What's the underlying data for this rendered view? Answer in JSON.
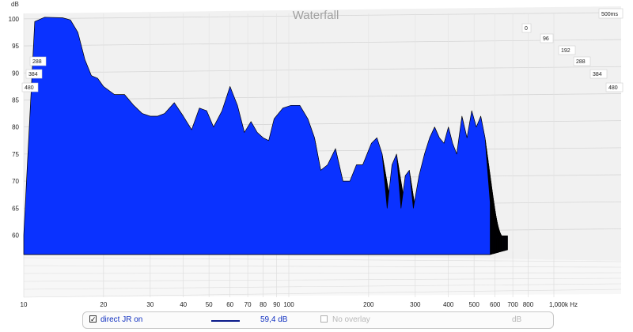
{
  "chart_data": {
    "type": "area",
    "title": "Waterfall",
    "ylabel": "dB",
    "time_window_label": "500ms",
    "x_scale": "log",
    "xlim": [
      10,
      1000
    ],
    "ylim": [
      57,
      101
    ],
    "x_ticks": [
      {
        "v": 10,
        "label": "10"
      },
      {
        "v": 20,
        "label": "20"
      },
      {
        "v": 30,
        "label": "30"
      },
      {
        "v": 40,
        "label": "40"
      },
      {
        "v": 50,
        "label": "50"
      },
      {
        "v": 60,
        "label": "60"
      },
      {
        "v": 70,
        "label": "70"
      },
      {
        "v": 80,
        "label": "80"
      },
      {
        "v": 90,
        "label": "90"
      },
      {
        "v": 100,
        "label": "100"
      },
      {
        "v": 200,
        "label": "200"
      },
      {
        "v": 300,
        "label": "300"
      },
      {
        "v": 400,
        "label": "400"
      },
      {
        "v": 500,
        "label": "500"
      },
      {
        "v": 600,
        "label": "600"
      },
      {
        "v": 700,
        "label": "700"
      },
      {
        "v": 800,
        "label": "800"
      },
      {
        "v": 1000,
        "label": "1,000k Hz"
      }
    ],
    "y_ticks": [
      {
        "v": 60,
        "label": "60"
      },
      {
        "v": 65,
        "label": "65"
      },
      {
        "v": 70,
        "label": "70"
      },
      {
        "v": 75,
        "label": "75"
      },
      {
        "v": 80,
        "label": "80"
      },
      {
        "v": 85,
        "label": "85"
      },
      {
        "v": 90,
        "label": "90"
      },
      {
        "v": 95,
        "label": "95"
      },
      {
        "v": 100,
        "label": "100"
      }
    ],
    "time_ticks_right": [
      "0",
      "96",
      "192",
      "288",
      "384",
      "480"
    ],
    "time_ticks_left": [
      "288",
      "384",
      "480"
    ],
    "grid": true,
    "series_color": "#0a32ff",
    "outline_color": "#000000",
    "response_db": [
      [
        10,
        60
      ],
      [
        11,
        99.5
      ],
      [
        12,
        100.3
      ],
      [
        14,
        100.2
      ],
      [
        15,
        99.8
      ],
      [
        16,
        97.5
      ],
      [
        17,
        92.5
      ],
      [
        18,
        89.5
      ],
      [
        19,
        89.0
      ],
      [
        20,
        87.5
      ],
      [
        22,
        86.0
      ],
      [
        24,
        86.0
      ],
      [
        26,
        84.0
      ],
      [
        28,
        82.5
      ],
      [
        30,
        82.0
      ],
      [
        32,
        82.0
      ],
      [
        34,
        82.5
      ],
      [
        37,
        84.5
      ],
      [
        40,
        82.0
      ],
      [
        43,
        79.5
      ],
      [
        46,
        83.5
      ],
      [
        49,
        83.0
      ],
      [
        52,
        80.0
      ],
      [
        56,
        83.0
      ],
      [
        60,
        87.5
      ],
      [
        64,
        84.0
      ],
      [
        68,
        79.0
      ],
      [
        72,
        81.0
      ],
      [
        76,
        79.0
      ],
      [
        80,
        78.0
      ],
      [
        84,
        77.5
      ],
      [
        88,
        81.5
      ],
      [
        95,
        83.5
      ],
      [
        102,
        84.0
      ],
      [
        110,
        84.0
      ],
      [
        118,
        81.5
      ],
      [
        125,
        78.0
      ],
      [
        132,
        72.0
      ],
      [
        140,
        73.0
      ],
      [
        150,
        76.0
      ],
      [
        160,
        70.0
      ],
      [
        170,
        70.0
      ],
      [
        180,
        73.0
      ],
      [
        190,
        73.0
      ],
      [
        205,
        77.0
      ],
      [
        215,
        78.0
      ],
      [
        225,
        75.0
      ],
      [
        235,
        65.0
      ],
      [
        245,
        73.0
      ],
      [
        255,
        75.0
      ],
      [
        265,
        65.0
      ],
      [
        275,
        71.0
      ],
      [
        285,
        72.0
      ],
      [
        295,
        65.0
      ],
      [
        310,
        71.0
      ],
      [
        325,
        75.0
      ],
      [
        340,
        78.0
      ],
      [
        355,
        80.0
      ],
      [
        370,
        78.0
      ],
      [
        385,
        77.0
      ],
      [
        400,
        80.0
      ],
      [
        415,
        77.0
      ],
      [
        430,
        75.0
      ],
      [
        450,
        82.0
      ],
      [
        470,
        78.0
      ],
      [
        490,
        83.0
      ],
      [
        510,
        80.0
      ],
      [
        530,
        82.0
      ],
      [
        550,
        78.0
      ],
      [
        575,
        66.0
      ]
    ]
  },
  "legend": {
    "entry_label": "direct JR on",
    "entry_checked": true,
    "entry_value": "59,4 dB",
    "overlay_label": "No overlay",
    "overlay_checked": false,
    "unit_label": "dB",
    "line_color": "#0a1a8a"
  }
}
